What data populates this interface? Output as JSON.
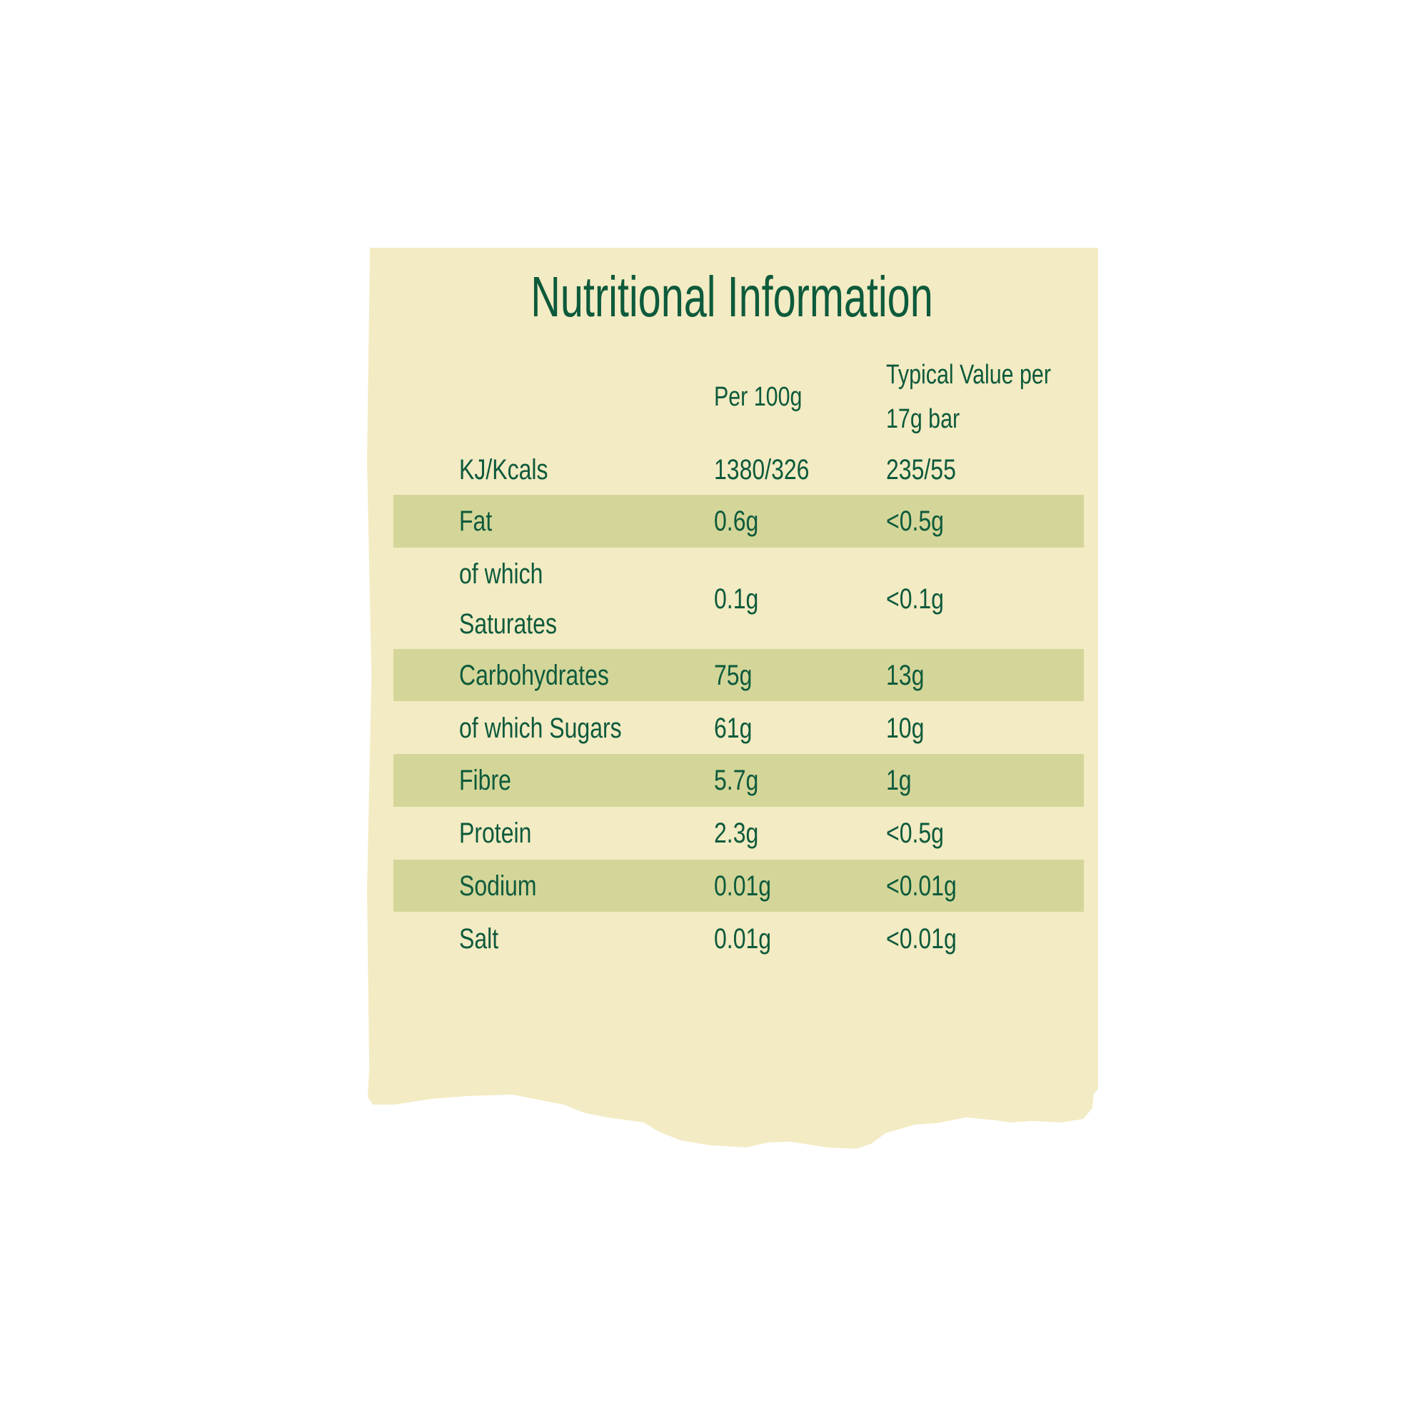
{
  "title": "Nutritional Information",
  "colors": {
    "paper": "#f3ebc3",
    "stripe": "#d4d699",
    "text": "#0d5a3c"
  },
  "columns": {
    "per_100g": "Per 100g",
    "typical_line1": "Typical Value per",
    "typical_line2": "17g bar"
  },
  "rows": [
    {
      "label": "KJ/Kcals",
      "per_100g": "1380/326",
      "per_bar": "235/55"
    },
    {
      "label": "Fat",
      "per_100g": "0.6g",
      "per_bar": "<0.5g"
    },
    {
      "label_line1": "of which",
      "label_line2": "Saturates",
      "per_100g": "0.1g",
      "per_bar": "<0.1g"
    },
    {
      "label": "Carbohydrates",
      "per_100g": "75g",
      "per_bar": "13g"
    },
    {
      "label": "of which Sugars",
      "per_100g": "61g",
      "per_bar": "10g"
    },
    {
      "label": "Fibre",
      "per_100g": "5.7g",
      "per_bar": "1g"
    },
    {
      "label": "Protein",
      "per_100g": "2.3g",
      "per_bar": "<0.5g"
    },
    {
      "label": "Sodium",
      "per_100g": "0.01g",
      "per_bar": "<0.01g"
    },
    {
      "label": "Salt",
      "per_100g": "0.01g",
      "per_bar": "<0.01g"
    }
  ]
}
